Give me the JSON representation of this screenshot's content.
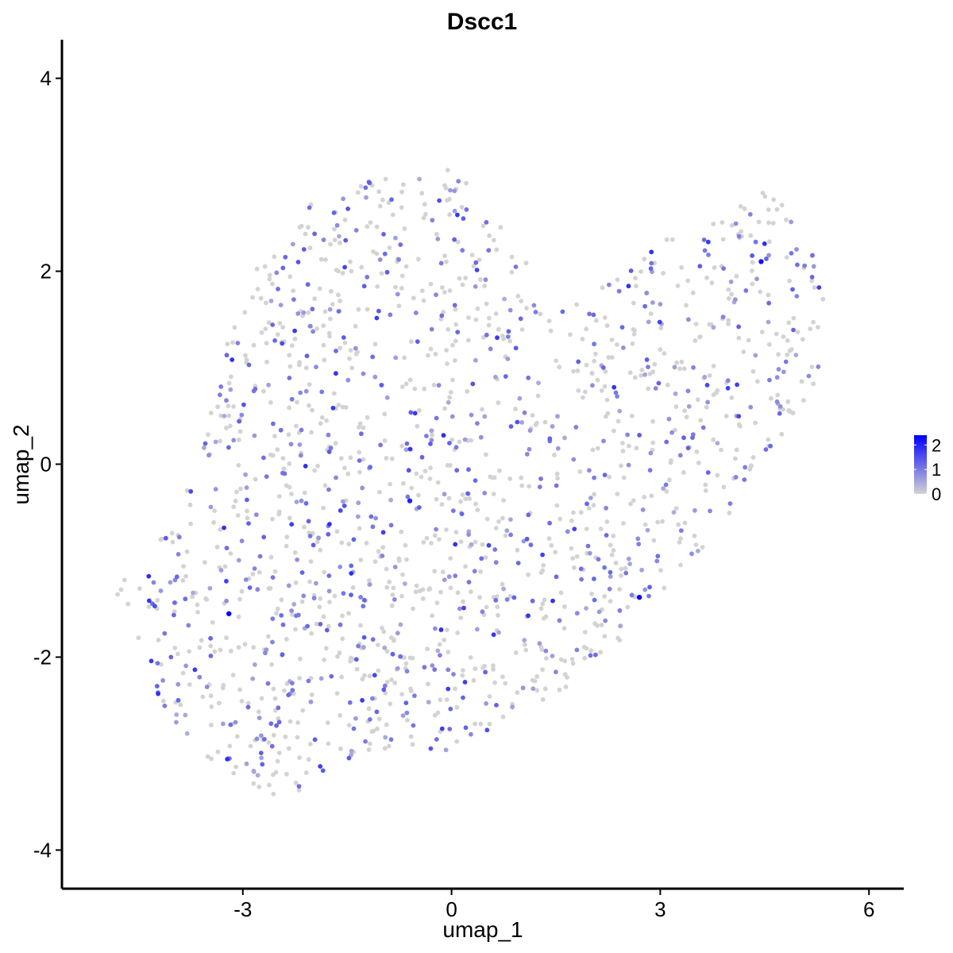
{
  "chart_data": {
    "type": "scatter",
    "title": "Dscc1",
    "xlabel": "umap_1",
    "ylabel": "umap_2",
    "xlim": [
      -5.6,
      6.5
    ],
    "ylim": [
      -4.4,
      4.4
    ],
    "x_ticks": [
      -3,
      0,
      3,
      6
    ],
    "x_tick_labels": [
      "-3",
      "0",
      "3",
      "6"
    ],
    "y_ticks": [
      -4,
      -2,
      0,
      2,
      4
    ],
    "y_tick_labels": [
      "-4",
      "-2",
      "0",
      "2",
      "4"
    ],
    "grid": false,
    "legend": {
      "placement": "right",
      "type": "colorbar",
      "min": 0,
      "max": 2.4,
      "ticks": [
        0,
        1,
        2
      ],
      "tick_labels": [
        "0",
        "1",
        "2"
      ],
      "low_color": "#d3d3d3",
      "high_color": "#0000ff"
    },
    "point_color_by": "expression",
    "highlight_points": [
      {
        "x": -3.2,
        "y": -1.55,
        "value": 2.4
      },
      {
        "x": 2.7,
        "y": -1.38,
        "value": 2.4
      },
      {
        "x": 4.45,
        "y": 2.1,
        "value": 2.2
      },
      {
        "x": -0.6,
        "y": -0.38,
        "value": 2.0
      }
    ],
    "cluster_outline": [
      [
        -4.6,
        -1.2
      ],
      [
        -4.3,
        -1.6
      ],
      [
        -4.4,
        -2.2
      ],
      [
        -4.0,
        -2.7
      ],
      [
        -3.5,
        -3.1
      ],
      [
        -2.9,
        -3.3
      ],
      [
        -2.4,
        -3.5
      ],
      [
        -1.8,
        -3.2
      ],
      [
        -1.2,
        -3.0
      ],
      [
        -0.6,
        -2.9
      ],
      [
        0.0,
        -3.0
      ],
      [
        0.6,
        -2.9
      ],
      [
        1.1,
        -2.6
      ],
      [
        1.7,
        -2.3
      ],
      [
        2.3,
        -2.0
      ],
      [
        2.8,
        -1.6
      ],
      [
        3.2,
        -1.2
      ],
      [
        3.6,
        -0.9
      ],
      [
        4.0,
        -0.5
      ],
      [
        4.5,
        -0.1
      ],
      [
        5.0,
        0.4
      ],
      [
        5.3,
        1.0
      ],
      [
        5.4,
        1.6
      ],
      [
        5.3,
        2.2
      ],
      [
        4.9,
        2.7
      ],
      [
        4.5,
        2.9
      ],
      [
        4.0,
        2.6
      ],
      [
        3.4,
        2.5
      ],
      [
        2.8,
        2.2
      ],
      [
        2.2,
        1.9
      ],
      [
        1.7,
        1.7
      ],
      [
        1.2,
        1.9
      ],
      [
        0.9,
        2.4
      ],
      [
        0.5,
        2.8
      ],
      [
        0.0,
        3.1
      ],
      [
        -0.7,
        3.0
      ],
      [
        -1.4,
        2.9
      ],
      [
        -2.0,
        2.8
      ],
      [
        -2.6,
        2.3
      ],
      [
        -3.0,
        1.8
      ],
      [
        -3.3,
        1.1
      ],
      [
        -3.5,
        0.4
      ],
      [
        -3.8,
        -0.2
      ],
      [
        -4.1,
        -0.7
      ]
    ]
  }
}
